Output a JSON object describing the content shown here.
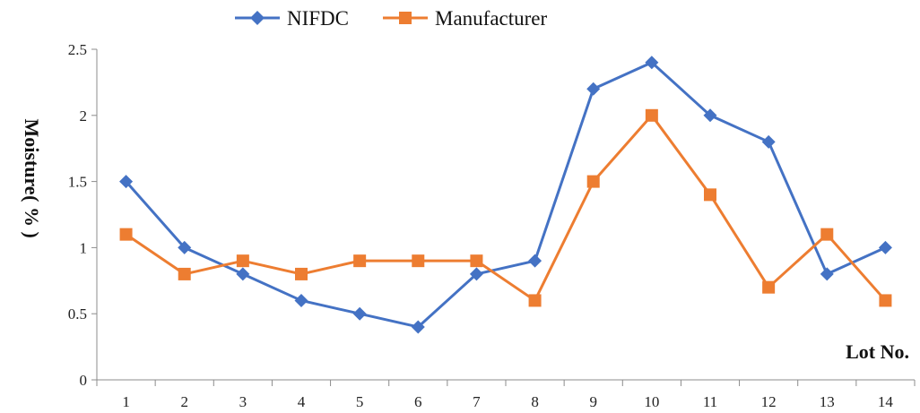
{
  "chart_data": {
    "type": "line",
    "title": "",
    "xlabel": "Lot No.",
    "ylabel": "Moisture (%)",
    "ylabel_lines": [
      "Moisture",
      "( % )"
    ],
    "categories": [
      "1",
      "2",
      "3",
      "4",
      "5",
      "6",
      "7",
      "8",
      "9",
      "10",
      "11",
      "12",
      "13",
      "14"
    ],
    "ylim": [
      0,
      2.5
    ],
    "yticks": [
      "0",
      "0.5",
      "1",
      "1.5",
      "2",
      "2.5"
    ],
    "grid": false,
    "legend_position": "top-left",
    "series": [
      {
        "name": "NIFDC",
        "marker": "diamond",
        "color": "#4472C4",
        "values": [
          1.5,
          1.0,
          0.8,
          0.6,
          0.5,
          0.4,
          0.8,
          0.9,
          2.2,
          2.4,
          2.0,
          1.8,
          0.8,
          1.0
        ]
      },
      {
        "name": "Manufacturer",
        "marker": "square",
        "color": "#ED7D31",
        "values": [
          1.1,
          0.8,
          0.9,
          0.8,
          0.9,
          0.9,
          0.9,
          0.6,
          1.5,
          2.0,
          1.4,
          0.7,
          1.1,
          0.6
        ]
      }
    ]
  }
}
